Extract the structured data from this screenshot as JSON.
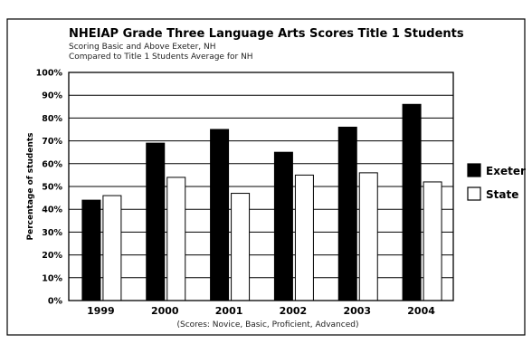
{
  "chart_data": {
    "type": "bar",
    "title": "NHEIAP Grade Three Language Arts Scores  Title 1 Students",
    "subtitle_lines": [
      "Scoring Basic and Above  Exeter, NH",
      "Compared to Title 1 Students Average for NH"
    ],
    "ylabel": "Percentage of students",
    "xlabel": "",
    "note": "(Scores: Novice, Basic, Proficient, Advanced)",
    "categories": [
      "1999",
      "2000",
      "2001",
      "2002",
      "2003",
      "2004"
    ],
    "yticks": [
      "0%",
      "10%",
      "20%",
      "30%",
      "40%",
      "50%",
      "60%",
      "70%",
      "80%",
      "90%",
      "100%"
    ],
    "ylim": [
      0,
      100
    ],
    "grid": true,
    "legend_position": "right",
    "series": [
      {
        "name": "Exeter",
        "values": [
          44,
          69,
          75,
          65,
          76,
          86
        ],
        "color": "#000000"
      },
      {
        "name": "State",
        "values": [
          46,
          54,
          47,
          55,
          56,
          52
        ],
        "color": "#ffffff"
      }
    ]
  }
}
